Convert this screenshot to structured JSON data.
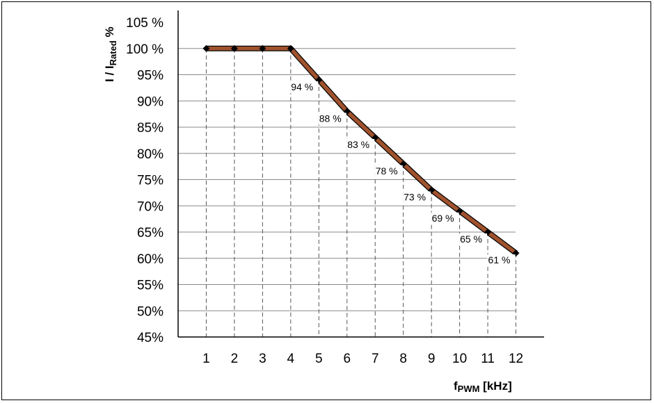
{
  "chart_data": {
    "type": "line",
    "title": "",
    "xlabel": {
      "main": "f",
      "sub": "PWM",
      "unit": " [kHz]"
    },
    "ylabel": {
      "main": "I / I",
      "sub": "Rated",
      "unit": " %"
    },
    "x": [
      1,
      2,
      3,
      4,
      5,
      6,
      7,
      8,
      9,
      10,
      11,
      12
    ],
    "y": [
      100,
      100,
      100,
      100,
      94,
      88,
      83,
      78,
      73,
      69,
      65,
      61
    ],
    "xlim": [
      0,
      13
    ],
    "ylim": [
      45,
      105
    ],
    "x_ticks": [
      "1",
      "2",
      "3",
      "4",
      "5",
      "6",
      "7",
      "8",
      "9",
      "10",
      "11",
      "12"
    ],
    "y_ticks": [
      {
        "value": 105,
        "label": "105 %"
      },
      {
        "value": 100,
        "label": "100 %"
      },
      {
        "value": 95,
        "label": "95%"
      },
      {
        "value": 90,
        "label": "90%"
      },
      {
        "value": 85,
        "label": "85%"
      },
      {
        "value": 80,
        "label": "80%"
      },
      {
        "value": 75,
        "label": "75%"
      },
      {
        "value": 70,
        "label": "70%"
      },
      {
        "value": 65,
        "label": "65%"
      },
      {
        "value": 60,
        "label": "60%"
      },
      {
        "value": 55,
        "label": "55%"
      },
      {
        "value": 50,
        "label": "50%"
      },
      {
        "value": 45,
        "label": "45%"
      }
    ],
    "data_labels": [
      {
        "x": 5,
        "label": "94 %"
      },
      {
        "x": 6,
        "label": "88 %"
      },
      {
        "x": 7,
        "label": "83 %"
      },
      {
        "x": 8,
        "label": "78 %"
      },
      {
        "x": 9,
        "label": "73 %"
      },
      {
        "x": 10,
        "label": "69 %"
      },
      {
        "x": 11,
        "label": "65 %"
      },
      {
        "x": 12,
        "label": "61 %"
      }
    ],
    "grid": {
      "horizontal": "solid",
      "vertical": "dashed"
    },
    "colors": {
      "line": "#a0522d",
      "line_outline": "#000000",
      "marker": "#000000",
      "grid": "#888888"
    }
  }
}
